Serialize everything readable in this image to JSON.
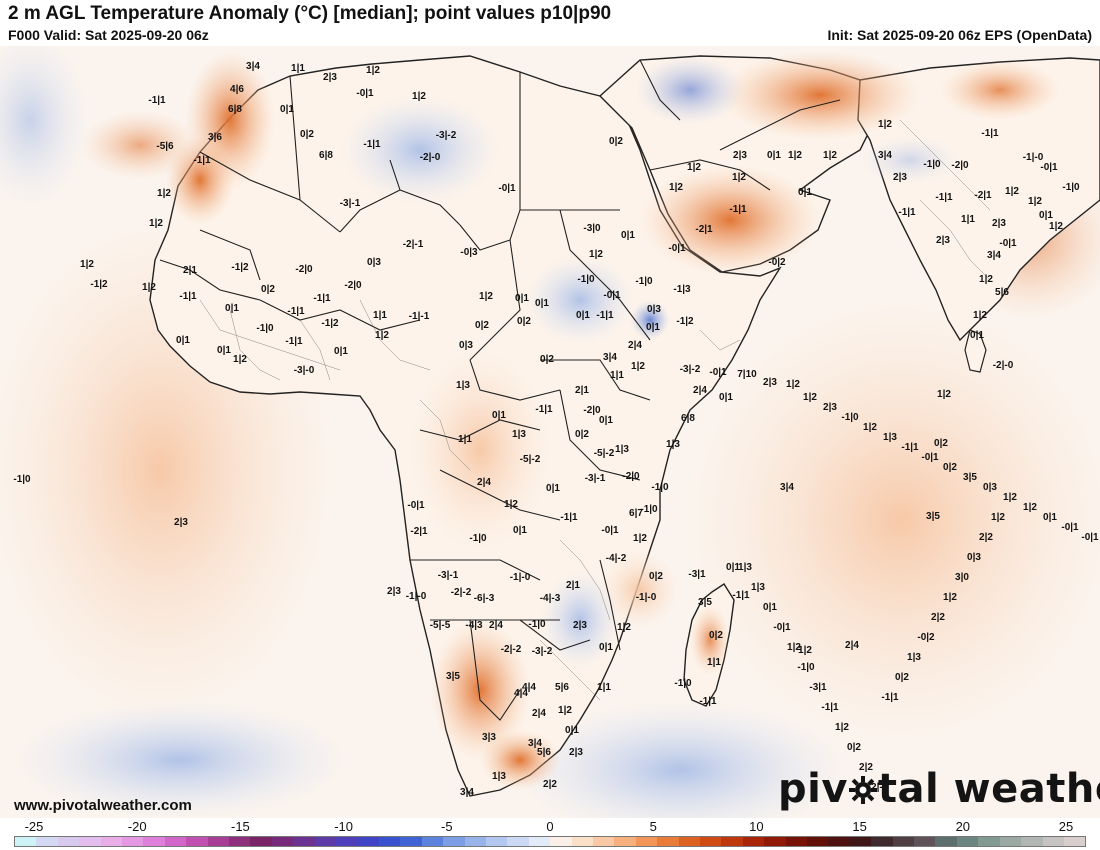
{
  "header": {
    "title": "2 m AGL Temperature Anomaly (°C) [median]; point values p10|p90",
    "valid": "F000 Valid: Sat 2025-09-20 06z",
    "init": "Init: Sat 2025-09-20 06z EPS (OpenData)"
  },
  "footer": {
    "website": "www.pivotalweather.com",
    "logo_part1": "piv",
    "logo_part2": "tal weather",
    "logo_icon": "gear-icon"
  },
  "colorbar": {
    "ticks": [
      "-25",
      "-20",
      "-15",
      "-10",
      "-5",
      "0",
      "5",
      "10",
      "15",
      "20",
      "25"
    ],
    "colors": [
      "#cdf3f7",
      "#d3d9f3",
      "#d8c9ef",
      "#e2bdee",
      "#e9aee8",
      "#e599e3",
      "#de80da",
      "#d167c9",
      "#c150b0",
      "#a83d95",
      "#8e2f7d",
      "#7a2468",
      "#772a7b",
      "#6b3391",
      "#5c3aa8",
      "#4e40bb",
      "#3f44c6",
      "#3851cf",
      "#3f63d4",
      "#5b82dd",
      "#7b9ee4",
      "#97b3ea",
      "#b3c8f0",
      "#cbd9f5",
      "#e2ebf8",
      "#fbf0e7",
      "#fadfc9",
      "#f8c9a4",
      "#f5b07e",
      "#f19558",
      "#e87c38",
      "#dd6222",
      "#cf4b13",
      "#be370d",
      "#a92509",
      "#911a07",
      "#771207",
      "#601007",
      "#4d1210",
      "#3f1719",
      "#3e2a2c",
      "#4f3f43",
      "#5f5258",
      "#5c6e6e",
      "#6b8580",
      "#819a92",
      "#9aaaa3",
      "#b1b6b3",
      "#c6c3c2",
      "#d8cfcd"
    ],
    "tick_values": [
      -25,
      -20,
      -15,
      -10,
      -5,
      0,
      5,
      10,
      15,
      20,
      25
    ]
  },
  "map": {
    "region": "Africa, Arabian Peninsula and Indian subcontinent",
    "point_values": [
      "3|4",
      "1|1",
      "2|3",
      "1|2",
      "-1|1",
      "4|6",
      "-0|1",
      "6|8",
      "1|2",
      "0|1",
      "-3|-2",
      "-1|1",
      "3|6",
      "-5|6",
      "0|2",
      "-1|1",
      "-2|-0",
      "6|8",
      "0|2",
      "-0|1",
      "1|2",
      "-3|-1",
      "-2|-1",
      "1|2",
      "-0|3",
      "-1|2",
      "-2|0",
      "0|3",
      "1|2",
      "2|1",
      "-1|2",
      "0|2",
      "-2|0",
      "1|2",
      "-1|1",
      "-1|1",
      "0|1",
      "1|2",
      "0|1",
      "-1|1",
      "1|1",
      "-1|2",
      "-1|-1",
      "0|2",
      "-1|0",
      "0|1",
      "0|1",
      "-1|1",
      "1|2",
      "0|3",
      "1|3",
      "0|2",
      "0|2",
      "0|1",
      "1|2",
      "-3|-0",
      "-3|0",
      "0|1",
      "1|2",
      "-1|0",
      "0|1",
      "-0|1",
      "-1|0",
      "-0|1",
      "0|1",
      "0|3",
      "2|4",
      "-1|2",
      "1|2",
      "2|1",
      "-2|0",
      "0|2",
      "-1|1",
      "0|1",
      "1|1",
      "1|3",
      "2|4",
      "1|2",
      "-1|0",
      "0|1",
      "0|1",
      "-1|1",
      "-0|1",
      "-3|-1",
      "-5|-2",
      "-5|-2",
      "-2|0",
      "-4|-2",
      "2|1",
      "-1|-0",
      "-3|-1",
      "-6|-3",
      "-4|-3",
      "-2|-2",
      "0|2",
      "-3|1",
      "0|1",
      "-1|1",
      "-1|-0",
      "3|5",
      "1|2",
      "2|3",
      "-1|0",
      "2|4",
      "-5|-5",
      "-1|-0",
      "-4|3",
      "-3|-2",
      "-2|-2",
      "0|1",
      "0|2",
      "1|1",
      "-1|0",
      "-1|1",
      "1|1",
      "5|6",
      "4|4",
      "2|4",
      "1|2",
      "4|4",
      "3|5",
      "3|3",
      "0|1",
      "3|4",
      "5|6",
      "2|3",
      "1|3",
      "3|4",
      "2|2",
      "1|2",
      "-1|1",
      "-2|1",
      "-0|2",
      "0|1",
      "1|2",
      "1|2",
      "2|3",
      "0|1",
      "1|2",
      "1|2",
      "3|4",
      "1|2",
      "2|3",
      "-1|0",
      "-1|1",
      "-1|1",
      "2|3",
      "1|1",
      "-2|1",
      "-2|0",
      "-1|1",
      "-1|-0",
      "-0|1",
      "-1|0",
      "1|2",
      "0|1",
      "1|2",
      "2|3",
      "-0|1",
      "1|2",
      "3|4",
      "1|2",
      "5|6",
      "1|2",
      "0|1",
      "-2|-0",
      "1|2",
      "0|2",
      "3|4",
      "3|5",
      "2|3",
      "-1|0",
      "-2|1",
      "-0|1",
      "2|3",
      "1|2",
      "2|4",
      "-1|3",
      "-1|1",
      "0|1",
      "3|4",
      "1|1",
      "0|1",
      "1|3",
      "6|7",
      "1|2",
      "-1|0",
      "-1|0",
      "1|3",
      "6|8",
      "2|4",
      "-3|-2",
      "-0|1",
      "0|1",
      "7|10",
      "2|3",
      "1|2",
      "1|2",
      "2|3",
      "-1|0",
      "1|2",
      "1|3",
      "-1|1",
      "-0|1",
      "0|2",
      "3|5",
      "0|3",
      "1|2",
      "1|2",
      "0|1",
      "-0|1",
      "-0|1",
      "1|3",
      "1|3",
      "0|1",
      "-0|1",
      "1|2",
      "-1|0",
      "-3|1",
      "-1|1",
      "1|2",
      "0|2",
      "2|2",
      "-2|-0",
      "-1|1",
      "0|2",
      "1|3",
      "-0|2",
      "2|2",
      "1|2",
      "3|0",
      "0|3",
      "2|2",
      "1|2",
      "-1|0",
      "-0|2",
      "0|1",
      "-1|2",
      "0|1",
      "-1|0",
      "1|2",
      "-0|2",
      "-1|1",
      "-1|1",
      "1|3",
      "0|1",
      "2|3",
      "-2|-0",
      "0|2",
      "-1|1",
      "-1|1",
      "1|3",
      "1|3",
      "-0|1",
      "-0|1",
      "-0|1",
      "1|2",
      "0|2",
      "1|2",
      "0|1",
      "0|1"
    ]
  }
}
